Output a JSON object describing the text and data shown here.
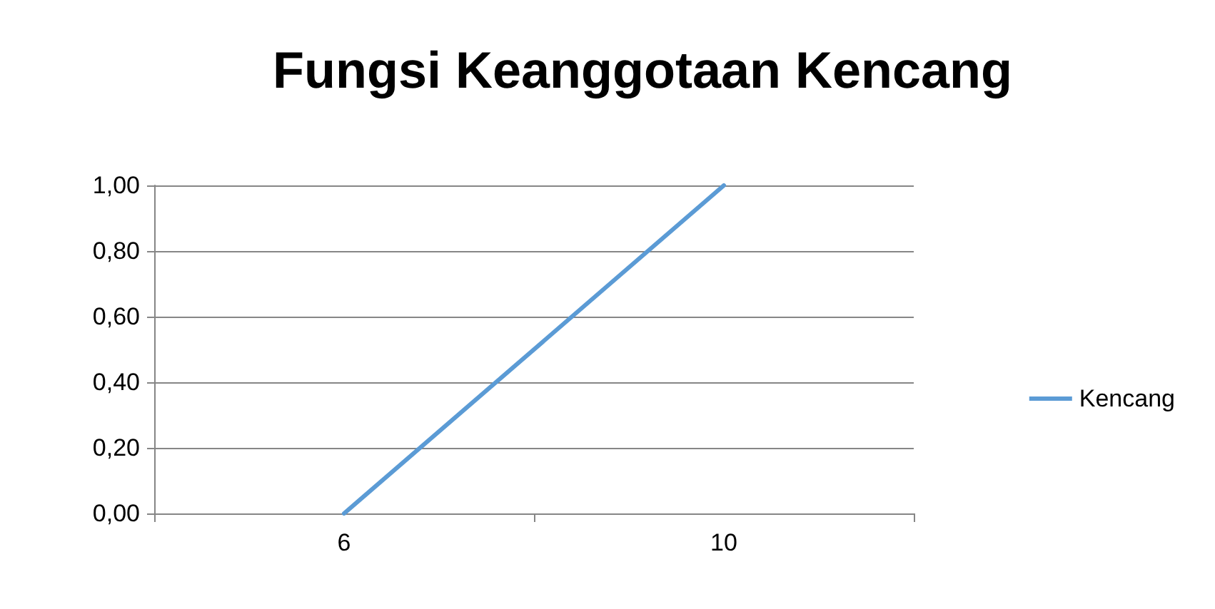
{
  "chart_data": {
    "type": "line",
    "title": "Fungsi Keanggotaan Kencang",
    "categories": [
      "6",
      "10"
    ],
    "series": [
      {
        "name": "Kencang",
        "color": "#5b9bd5",
        "values": [
          0,
          1
        ]
      }
    ],
    "ylim": [
      0,
      1
    ],
    "yticks": [
      {
        "value": 0,
        "label": "0,00"
      },
      {
        "value": 0.2,
        "label": "0,20"
      },
      {
        "value": 0.4,
        "label": "0,40"
      },
      {
        "value": 0.6,
        "label": "0,60"
      },
      {
        "value": 0.8,
        "label": "0,80"
      },
      {
        "value": 1,
        "label": "1,00"
      }
    ],
    "grid": "y",
    "legend": "right",
    "marker": "none"
  }
}
